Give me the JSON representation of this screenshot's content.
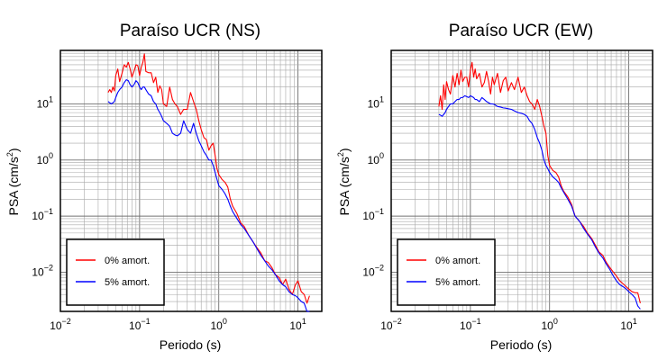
{
  "chart_data": [
    {
      "type": "line",
      "title": "Paraíso UCR (NS)",
      "xlabel": "Periodo (s)",
      "ylabel_base": "PSA (cm/s",
      "ylabel_sup": "2",
      "ylabel_close": ")",
      "xscale": "log",
      "yscale": "log",
      "xlim": [
        0.01,
        20
      ],
      "ylim": [
        0.002,
        90
      ],
      "xticks": [
        {
          "value": 0.01,
          "base": "10",
          "exp": "−2"
        },
        {
          "value": 0.1,
          "base": "10",
          "exp": "−1"
        },
        {
          "value": 1,
          "base": "10",
          "exp": "0"
        },
        {
          "value": 10,
          "base": "10",
          "exp": "1"
        }
      ],
      "yticks": [
        {
          "value": 0.01,
          "base": "10",
          "exp": "−2"
        },
        {
          "value": 0.1,
          "base": "10",
          "exp": "−1"
        },
        {
          "value": 1,
          "base": "10",
          "exp": "0"
        },
        {
          "value": 10,
          "base": "10",
          "exp": "1"
        }
      ],
      "grid": true,
      "legend_position": "bottom-left",
      "series": [
        {
          "name": "0% amort.",
          "color": "#ff0000",
          "x": [
            0.04,
            0.042,
            0.044,
            0.046,
            0.048,
            0.05,
            0.053,
            0.056,
            0.06,
            0.064,
            0.068,
            0.072,
            0.076,
            0.08,
            0.085,
            0.09,
            0.095,
            0.1,
            0.105,
            0.11,
            0.115,
            0.12,
            0.13,
            0.14,
            0.15,
            0.16,
            0.17,
            0.18,
            0.19,
            0.2,
            0.22,
            0.24,
            0.26,
            0.28,
            0.3,
            0.33,
            0.36,
            0.4,
            0.44,
            0.48,
            0.52,
            0.56,
            0.6,
            0.65,
            0.7,
            0.75,
            0.8,
            0.85,
            0.9,
            0.95,
            1.0,
            1.1,
            1.2,
            1.3,
            1.4,
            1.5,
            1.7,
            1.9,
            2.1,
            2.4,
            2.7,
            3.0,
            3.4,
            3.8,
            4.2,
            4.7,
            5.2,
            5.8,
            6.4,
            7.0,
            7.7,
            8.5,
            9.3,
            10,
            11,
            12,
            13,
            14
          ],
          "y": [
            16,
            18,
            16,
            20,
            17,
            32,
            42,
            25,
            35,
            50,
            45,
            55,
            42,
            30,
            38,
            50,
            48,
            32,
            45,
            55,
            78,
            38,
            36,
            36,
            24,
            30,
            16,
            21,
            18,
            10,
            9,
            20,
            12,
            10,
            9,
            6.5,
            8,
            8,
            16,
            11,
            8,
            5,
            3.5,
            2.5,
            2.3,
            1.5,
            1.8,
            2,
            1.2,
            0.7,
            0.55,
            0.45,
            0.4,
            0.33,
            0.2,
            0.15,
            0.11,
            0.075,
            0.065,
            0.045,
            0.035,
            0.028,
            0.022,
            0.016,
            0.015,
            0.012,
            0.009,
            0.008,
            0.006,
            0.0075,
            0.005,
            0.004,
            0.006,
            0.007,
            0.0045,
            0.004,
            0.0028,
            0.0038
          ]
        },
        {
          "name": "5% amort.",
          "color": "#0000ff",
          "x": [
            0.04,
            0.042,
            0.044,
            0.046,
            0.048,
            0.05,
            0.053,
            0.056,
            0.06,
            0.064,
            0.068,
            0.072,
            0.076,
            0.08,
            0.085,
            0.09,
            0.095,
            0.1,
            0.105,
            0.11,
            0.115,
            0.12,
            0.13,
            0.14,
            0.15,
            0.16,
            0.17,
            0.18,
            0.19,
            0.2,
            0.22,
            0.24,
            0.26,
            0.28,
            0.3,
            0.33,
            0.36,
            0.4,
            0.44,
            0.48,
            0.52,
            0.56,
            0.6,
            0.65,
            0.7,
            0.75,
            0.8,
            0.85,
            0.9,
            0.95,
            1.0,
            1.1,
            1.2,
            1.3,
            1.4,
            1.5,
            1.7,
            1.9,
            2.1,
            2.4,
            2.7,
            3.0,
            3.4,
            3.8,
            4.2,
            4.7,
            5.2,
            5.8,
            6.4,
            7.0,
            7.7,
            8.5,
            9.3,
            10,
            11,
            12,
            13,
            14
          ],
          "y": [
            11,
            10.5,
            10,
            10.5,
            11,
            13,
            16,
            18,
            20,
            24,
            27,
            26,
            22,
            20,
            22,
            26,
            24,
            20,
            18,
            20,
            20,
            18,
            15,
            14,
            11,
            10,
            8,
            7,
            6,
            5,
            4.5,
            4,
            3,
            2.8,
            2.7,
            3,
            5,
            3.5,
            3,
            4.5,
            3,
            2.2,
            1.8,
            1.4,
            1.2,
            1,
            1,
            0.8,
            0.6,
            0.45,
            0.35,
            0.3,
            0.25,
            0.2,
            0.15,
            0.12,
            0.09,
            0.07,
            0.06,
            0.045,
            0.035,
            0.027,
            0.02,
            0.016,
            0.013,
            0.011,
            0.009,
            0.007,
            0.006,
            0.0055,
            0.0045,
            0.004,
            0.0038,
            0.0035,
            0.003,
            0.0028,
            0.002,
            0.002
          ]
        }
      ]
    },
    {
      "type": "line",
      "title": "Paraíso UCR (EW)",
      "xlabel": "Periodo (s)",
      "ylabel_base": "PSA (cm/s",
      "ylabel_sup": "2",
      "ylabel_close": ")",
      "xscale": "log",
      "yscale": "log",
      "xlim": [
        0.01,
        20
      ],
      "ylim": [
        0.002,
        90
      ],
      "xticks": [
        {
          "value": 0.01,
          "base": "10",
          "exp": "−2"
        },
        {
          "value": 0.1,
          "base": "10",
          "exp": "−1"
        },
        {
          "value": 1,
          "base": "10",
          "exp": "0"
        },
        {
          "value": 10,
          "base": "10",
          "exp": "1"
        }
      ],
      "yticks": [
        {
          "value": 0.01,
          "base": "10",
          "exp": "−2"
        },
        {
          "value": 0.1,
          "base": "10",
          "exp": "−1"
        },
        {
          "value": 1,
          "base": "10",
          "exp": "0"
        },
        {
          "value": 10,
          "base": "10",
          "exp": "1"
        }
      ],
      "grid": true,
      "legend_position": "bottom-left",
      "series": [
        {
          "name": "0% amort.",
          "color": "#ff0000",
          "x": [
            0.04,
            0.042,
            0.044,
            0.046,
            0.048,
            0.05,
            0.053,
            0.056,
            0.06,
            0.064,
            0.068,
            0.072,
            0.076,
            0.08,
            0.085,
            0.09,
            0.095,
            0.1,
            0.105,
            0.11,
            0.115,
            0.12,
            0.13,
            0.14,
            0.15,
            0.16,
            0.17,
            0.18,
            0.19,
            0.2,
            0.22,
            0.24,
            0.26,
            0.28,
            0.3,
            0.33,
            0.36,
            0.4,
            0.44,
            0.48,
            0.52,
            0.56,
            0.6,
            0.65,
            0.7,
            0.75,
            0.8,
            0.85,
            0.9,
            0.95,
            1.0,
            1.1,
            1.2,
            1.3,
            1.4,
            1.5,
            1.7,
            1.9,
            2.1,
            2.4,
            2.7,
            3.0,
            3.4,
            3.8,
            4.2,
            4.7,
            5.2,
            5.8,
            6.4,
            7.0,
            7.7,
            8.5,
            9.3,
            10,
            11,
            12,
            13,
            14
          ],
          "y": [
            9,
            14,
            8,
            22,
            12,
            25,
            18,
            15,
            32,
            20,
            35,
            22,
            40,
            25,
            30,
            30,
            20,
            40,
            55,
            30,
            42,
            28,
            35,
            20,
            24,
            38,
            25,
            15,
            30,
            22,
            35,
            16,
            26,
            30,
            17,
            24,
            18,
            30,
            16,
            20,
            14,
            11,
            10,
            8,
            12,
            9,
            6,
            4,
            3,
            1.2,
            0.8,
            0.65,
            0.6,
            0.5,
            0.35,
            0.28,
            0.22,
            0.16,
            0.1,
            0.08,
            0.065,
            0.05,
            0.04,
            0.03,
            0.023,
            0.02,
            0.015,
            0.012,
            0.01,
            0.0085,
            0.007,
            0.0062,
            0.0055,
            0.005,
            0.0045,
            0.0043,
            0.0043,
            0.0028
          ]
        },
        {
          "name": "5% amort.",
          "color": "#0000ff",
          "x": [
            0.04,
            0.042,
            0.044,
            0.046,
            0.048,
            0.05,
            0.053,
            0.056,
            0.06,
            0.064,
            0.068,
            0.072,
            0.076,
            0.08,
            0.085,
            0.09,
            0.095,
            0.1,
            0.105,
            0.11,
            0.115,
            0.12,
            0.13,
            0.14,
            0.15,
            0.16,
            0.17,
            0.18,
            0.19,
            0.2,
            0.22,
            0.24,
            0.26,
            0.28,
            0.3,
            0.33,
            0.36,
            0.4,
            0.44,
            0.48,
            0.52,
            0.56,
            0.6,
            0.65,
            0.7,
            0.75,
            0.8,
            0.85,
            0.9,
            0.95,
            1.0,
            1.1,
            1.2,
            1.3,
            1.4,
            1.5,
            1.7,
            1.9,
            2.1,
            2.4,
            2.7,
            3.0,
            3.4,
            3.8,
            4.2,
            4.7,
            5.2,
            5.8,
            6.4,
            7.0,
            7.7,
            8.5,
            9.3,
            10,
            11,
            12,
            13,
            14
          ],
          "y": [
            6.5,
            6.3,
            6,
            6.5,
            7,
            8,
            9,
            10,
            10,
            11,
            12,
            12,
            13,
            13,
            14,
            13.5,
            13,
            14,
            13.5,
            13,
            12,
            12,
            11,
            13,
            12,
            11,
            10.5,
            10,
            10,
            9.8,
            9,
            8.8,
            8.5,
            8.4,
            8.2,
            8,
            7.5,
            7,
            6.8,
            6.5,
            6,
            5,
            4.5,
            3.5,
            2.5,
            2,
            1.5,
            1,
            0.8,
            0.7,
            0.6,
            0.5,
            0.45,
            0.4,
            0.32,
            0.27,
            0.2,
            0.15,
            0.1,
            0.08,
            0.06,
            0.048,
            0.038,
            0.028,
            0.022,
            0.018,
            0.014,
            0.011,
            0.0085,
            0.007,
            0.006,
            0.0055,
            0.005,
            0.0045,
            0.004,
            0.0035,
            0.0025,
            0.0022
          ]
        }
      ]
    }
  ]
}
